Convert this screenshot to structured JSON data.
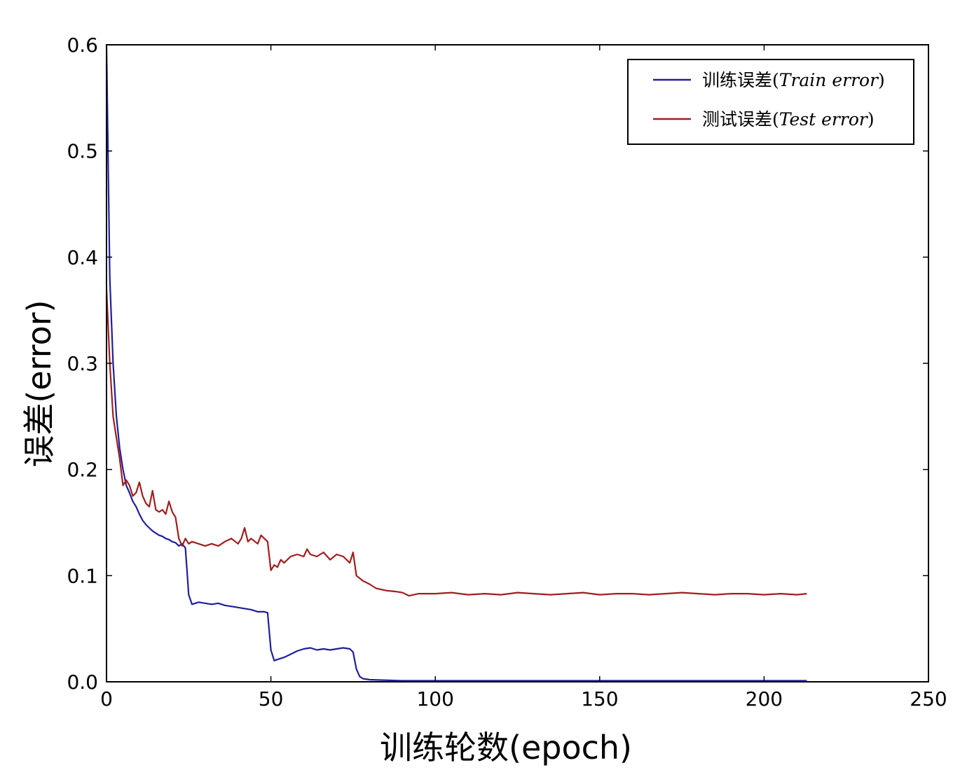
{
  "chart_data": {
    "type": "line",
    "title": "",
    "xlabel": "训练轮数(epoch)",
    "ylabel": "误差(error)",
    "xlim": [
      0,
      250
    ],
    "ylim": [
      0,
      0.6
    ],
    "xticks": [
      "0",
      "50",
      "100",
      "150",
      "200",
      "250"
    ],
    "yticks": [
      "0.0",
      "0.1",
      "0.2",
      "0.3",
      "0.4",
      "0.5",
      "0.6"
    ],
    "grid": false,
    "legend_position": "top-right",
    "series": [
      {
        "name": "训练误差(Train error)",
        "name_plain": "训练误差(",
        "name_italic": "Train error",
        "name_close": ")",
        "color": "#1f1f9e",
        "x": [
          0,
          1,
          2,
          3,
          4,
          5,
          6,
          7,
          8,
          9,
          10,
          11,
          12,
          13,
          14,
          15,
          16,
          17,
          18,
          19,
          20,
          21,
          22,
          23,
          24,
          25,
          26,
          27,
          28,
          30,
          32,
          34,
          36,
          38,
          40,
          42,
          44,
          46,
          48,
          49,
          50,
          51,
          52,
          54,
          56,
          58,
          60,
          62,
          64,
          66,
          68,
          70,
          72,
          74,
          75,
          76,
          77,
          78,
          80,
          90,
          100,
          120,
          150,
          180,
          200,
          213
        ],
        "y": [
          0.6,
          0.38,
          0.3,
          0.25,
          0.22,
          0.2,
          0.185,
          0.178,
          0.17,
          0.165,
          0.158,
          0.152,
          0.148,
          0.145,
          0.142,
          0.14,
          0.138,
          0.137,
          0.135,
          0.134,
          0.132,
          0.131,
          0.128,
          0.13,
          0.126,
          0.082,
          0.073,
          0.074,
          0.075,
          0.074,
          0.073,
          0.074,
          0.072,
          0.071,
          0.07,
          0.069,
          0.068,
          0.066,
          0.066,
          0.065,
          0.03,
          0.02,
          0.021,
          0.023,
          0.026,
          0.029,
          0.031,
          0.032,
          0.03,
          0.031,
          0.03,
          0.031,
          0.032,
          0.031,
          0.028,
          0.012,
          0.005,
          0.003,
          0.002,
          0.001,
          0.001,
          0.001,
          0.001,
          0.001,
          0.001,
          0.001
        ]
      },
      {
        "name": "测试误差(Test error)",
        "name_plain": "测试误差(",
        "name_italic": "Test error",
        "name_close": ")",
        "color": "#a01e1e",
        "x": [
          0,
          1,
          2,
          3,
          4,
          5,
          6,
          7,
          8,
          9,
          10,
          11,
          12,
          13,
          14,
          15,
          16,
          17,
          18,
          19,
          20,
          21,
          22,
          23,
          24,
          25,
          26,
          27,
          28,
          30,
          32,
          34,
          36,
          38,
          40,
          41,
          42,
          43,
          44,
          46,
          47,
          48,
          49,
          50,
          51,
          52,
          53,
          54,
          56,
          58,
          60,
          61,
          62,
          64,
          66,
          68,
          70,
          72,
          74,
          75,
          76,
          78,
          80,
          82,
          85,
          88,
          90,
          92,
          95,
          100,
          105,
          110,
          115,
          120,
          125,
          130,
          135,
          140,
          145,
          150,
          155,
          160,
          165,
          170,
          175,
          180,
          185,
          190,
          195,
          200,
          205,
          210,
          213
        ],
        "y": [
          0.37,
          0.3,
          0.25,
          0.23,
          0.21,
          0.185,
          0.19,
          0.185,
          0.175,
          0.178,
          0.188,
          0.175,
          0.168,
          0.165,
          0.18,
          0.162,
          0.16,
          0.162,
          0.158,
          0.17,
          0.16,
          0.155,
          0.135,
          0.128,
          0.135,
          0.13,
          0.132,
          0.131,
          0.13,
          0.128,
          0.13,
          0.128,
          0.132,
          0.135,
          0.13,
          0.135,
          0.145,
          0.132,
          0.135,
          0.13,
          0.138,
          0.135,
          0.132,
          0.105,
          0.11,
          0.108,
          0.115,
          0.112,
          0.118,
          0.12,
          0.118,
          0.125,
          0.12,
          0.118,
          0.122,
          0.115,
          0.12,
          0.118,
          0.112,
          0.122,
          0.1,
          0.095,
          0.092,
          0.088,
          0.086,
          0.085,
          0.084,
          0.081,
          0.083,
          0.083,
          0.084,
          0.082,
          0.083,
          0.082,
          0.084,
          0.083,
          0.082,
          0.083,
          0.084,
          0.082,
          0.083,
          0.083,
          0.082,
          0.083,
          0.084,
          0.083,
          0.082,
          0.083,
          0.083,
          0.082,
          0.083,
          0.082,
          0.083
        ]
      }
    ]
  }
}
